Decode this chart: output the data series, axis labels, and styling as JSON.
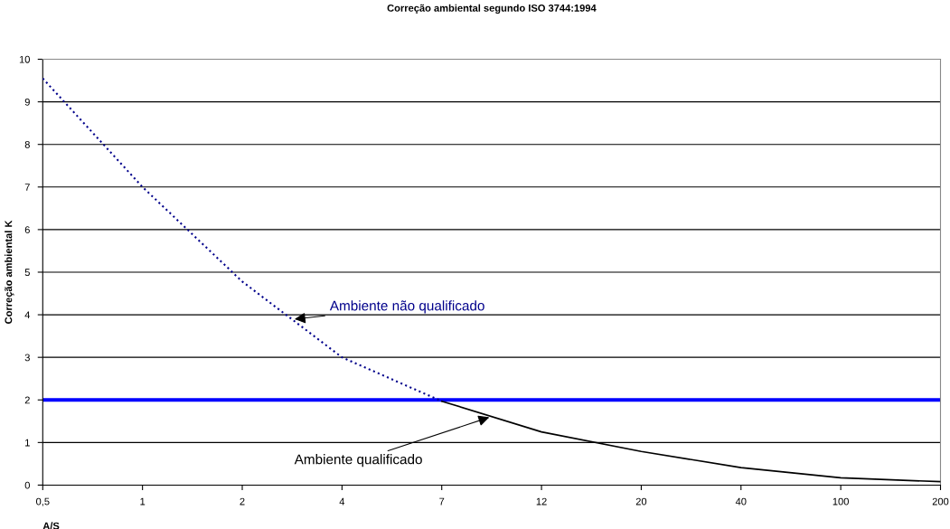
{
  "chart_data": {
    "type": "line",
    "title": "Correção ambiental segundo ISO 3744:1994",
    "xlabel": "A/S",
    "ylabel": "Correção ambiental K",
    "categories": [
      "0,5",
      "1",
      "2",
      "4",
      "7",
      "12",
      "20",
      "40",
      "100",
      "200"
    ],
    "series": [
      {
        "name": "Ambiente não qualificado",
        "color": "#00008b",
        "line_style": "dotted",
        "values": [
          9.55,
          7.0,
          4.78,
          3.0,
          1.97,
          null,
          null,
          null,
          null,
          null
        ]
      },
      {
        "name": "Ambiente qualificado",
        "color": "#000000",
        "line_style": "solid",
        "values": [
          null,
          null,
          null,
          null,
          1.97,
          1.25,
          0.79,
          0.41,
          0.17,
          0.08
        ]
      }
    ],
    "ylim": [
      0,
      10
    ],
    "yticks": [
      0,
      1,
      2,
      3,
      4,
      5,
      6,
      7,
      8,
      9,
      10
    ],
    "grid": "y",
    "legend": false,
    "ref_lines": [
      {
        "axis": "y",
        "value": 2,
        "color": "#0000ff"
      }
    ]
  }
}
